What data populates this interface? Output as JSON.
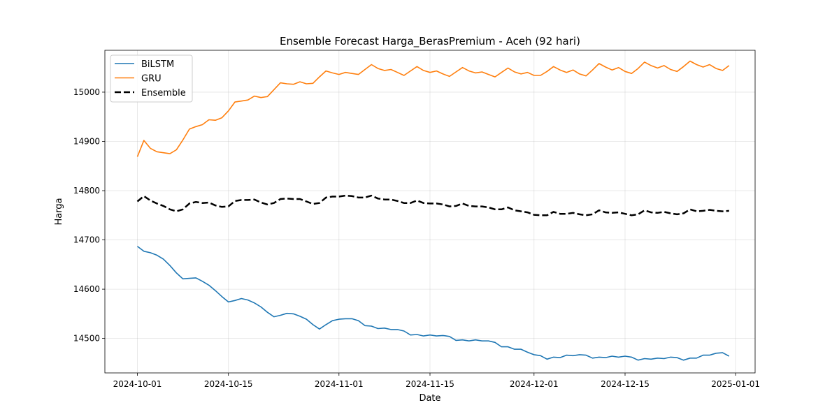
{
  "chart_data": {
    "type": "line",
    "title": "Ensemble Forecast Harga_BerasPremium - Aceh (92 hari)",
    "xlabel": "Date",
    "ylabel": "Harga",
    "x_start": "2024-10-01",
    "x_range": [
      "2024-09-26",
      "2025-01-04"
    ],
    "ylim": [
      14430,
      15085
    ],
    "x_ticks": [
      "2024-10-01",
      "2024-10-15",
      "2024-11-01",
      "2024-11-15",
      "2024-12-01",
      "2024-12-15",
      "2025-01-01"
    ],
    "y_ticks": [
      14500,
      14600,
      14700,
      14800,
      14900,
      15000
    ],
    "grid": true,
    "legend_position": "top-left",
    "series": [
      {
        "name": "BiLSTM",
        "color": "#1f77b4",
        "style": "solid",
        "values": [
          14687,
          14677,
          14674,
          14669,
          14661,
          14648,
          14633,
          14621,
          14622,
          14623,
          14616,
          14608,
          14597,
          14585,
          14574,
          14577,
          14581,
          14578,
          14572,
          14564,
          14553,
          14544,
          14547,
          14551,
          14550,
          14545,
          14539,
          14528,
          14519,
          14528,
          14536,
          14539,
          14540,
          14540,
          14536,
          14526,
          14525,
          14520,
          14521,
          14518,
          14518,
          14515,
          14507,
          14508,
          14505,
          14507,
          14505,
          14506,
          14504,
          14496,
          14497,
          14495,
          14497,
          14495,
          14495,
          14492,
          14483,
          14483,
          14478,
          14478,
          14472,
          14467,
          14465,
          14458,
          14462,
          14461,
          14466,
          14465,
          14467,
          14466,
          14460,
          14462,
          14461,
          14464,
          14462,
          14464,
          14462,
          14456,
          14459,
          14458,
          14460,
          14459,
          14462,
          14461,
          14456,
          14460,
          14460,
          14466,
          14466,
          14470,
          14471,
          14464
        ]
      },
      {
        "name": "GRU",
        "color": "#ff7f0e",
        "style": "solid",
        "values": [
          14869,
          14902,
          14886,
          14879,
          14877,
          14875,
          14883,
          14903,
          14925,
          14930,
          14934,
          14944,
          14943,
          14948,
          14962,
          14980,
          14982,
          14984,
          14992,
          14989,
          14991,
          15005,
          15019,
          15017,
          15016,
          15021,
          15017,
          15018,
          15031,
          15043,
          15039,
          15036,
          15040,
          15038,
          15036,
          15046,
          15056,
          15048,
          15044,
          15046,
          15040,
          15034,
          15043,
          15052,
          15044,
          15040,
          15043,
          15037,
          15032,
          15041,
          15050,
          15043,
          15039,
          15041,
          15036,
          15031,
          15040,
          15049,
          15041,
          15037,
          15040,
          15034,
          15034,
          15042,
          15052,
          15045,
          15040,
          15045,
          15037,
          15033,
          15045,
          15058,
          15051,
          15045,
          15050,
          15042,
          15038,
          15048,
          15061,
          15054,
          15049,
          15054,
          15046,
          15042,
          15052,
          15063,
          15056,
          15051,
          15056,
          15048,
          15044,
          15054
        ]
      },
      {
        "name": "Ensemble",
        "color": "#000000",
        "style": "dashed",
        "values": [
          14778,
          14789,
          14780,
          14774,
          14769,
          14762,
          14758,
          14762,
          14774,
          14777,
          14775,
          14776,
          14770,
          14767,
          14768,
          14779,
          14781,
          14781,
          14782,
          14776,
          14772,
          14775,
          14783,
          14784,
          14783,
          14783,
          14778,
          14773,
          14775,
          14786,
          14788,
          14788,
          14790,
          14789,
          14786,
          14786,
          14790,
          14784,
          14782,
          14782,
          14779,
          14775,
          14775,
          14780,
          14775,
          14774,
          14774,
          14772,
          14768,
          14769,
          14774,
          14769,
          14768,
          14768,
          14766,
          14762,
          14762,
          14766,
          14760,
          14758,
          14756,
          14751,
          14750,
          14750,
          14757,
          14753,
          14753,
          14755,
          14752,
          14750,
          14752,
          14760,
          14756,
          14755,
          14756,
          14753,
          14750,
          14752,
          14760,
          14756,
          14755,
          14757,
          14754,
          14752,
          14754,
          14762,
          14758,
          14759,
          14761,
          14759,
          14758,
          14759
        ]
      }
    ]
  }
}
